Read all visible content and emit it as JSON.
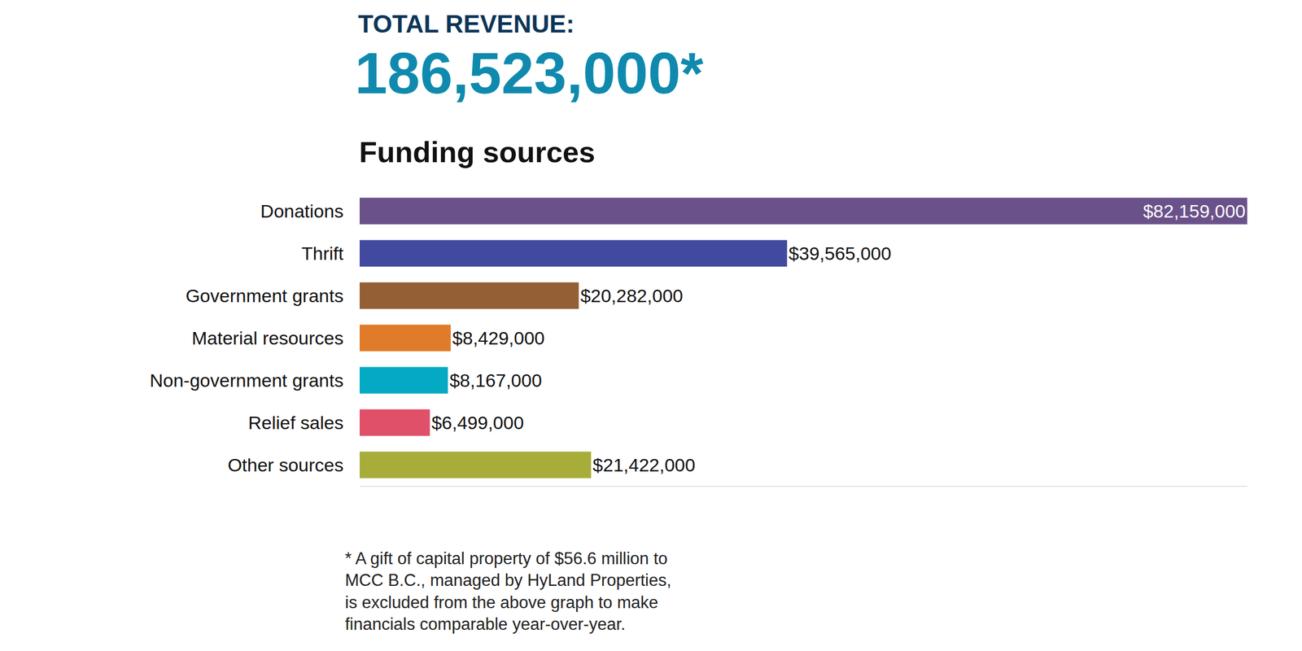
{
  "chart_data": {
    "type": "bar",
    "orientation": "horizontal",
    "title": "Funding sources",
    "annotations": [
      "TOTAL REVENUE:",
      "186,523,000*",
      "* A gift of capital property of $56.6 million to\nMCC B.C., managed by HyLand Properties,\nis excluded from the above graph to make\nfinancials comparable year-over-year."
    ],
    "categories": [
      "Donations",
      "Thrift",
      "Government grants",
      "Material resources",
      "Non-government grants",
      "Relief sales",
      "Other sources"
    ],
    "values": [
      82159000,
      39565000,
      20282000,
      8429000,
      8167000,
      6499000,
      21422000
    ],
    "value_labels": [
      "$82,159,000",
      "$39,565,000",
      "$20,282,000",
      "$8,429,000",
      "$8,167,000",
      "$6,499,000",
      "$21,422,000"
    ],
    "colors": [
      "#6a5189",
      "#424a9f",
      "#955f35",
      "#e07b2a",
      "#04a9c4",
      "#e05068",
      "#a8ad3a"
    ],
    "xlim": [
      0,
      82159000
    ],
    "data_labels": true,
    "tick_labels": "y",
    "grid": false
  }
}
